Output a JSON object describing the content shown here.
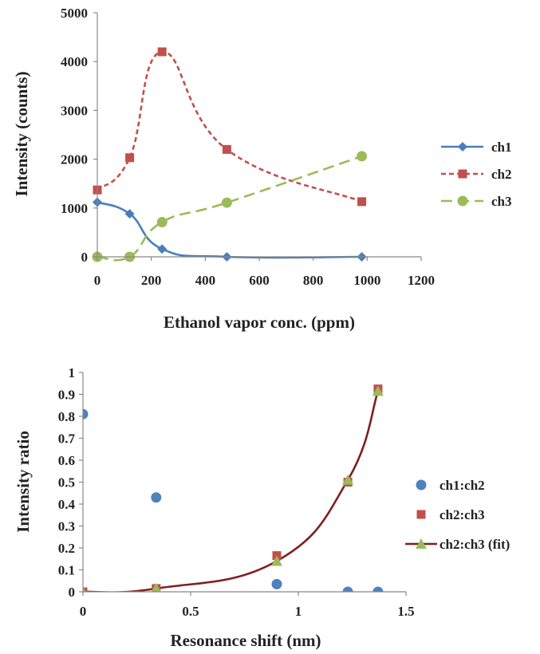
{
  "chart_data": [
    {
      "type": "line",
      "xlabel": "Ethanol vapor conc. (ppm)",
      "ylabel": "Intensity (counts)",
      "xlim": [
        0,
        1200
      ],
      "ylim": [
        0,
        5000
      ],
      "xticks": [
        "0",
        "200",
        "400",
        "600",
        "800",
        "1000",
        "1200"
      ],
      "yticks": [
        "0",
        "1000",
        "2000",
        "3000",
        "4000",
        "5000"
      ],
      "grid": false,
      "legend_position": "right",
      "series": [
        {
          "name": "ch1",
          "color": "#4a7ebb",
          "marker": "diamond",
          "dash": "solid",
          "x": [
            0,
            120,
            240,
            480,
            980
          ],
          "y": [
            1120,
            880,
            160,
            0,
            0
          ]
        },
        {
          "name": "ch2",
          "color": "#c0504d",
          "marker": "square",
          "dash": "short-dash",
          "x": [
            0,
            120,
            240,
            480,
            980
          ],
          "y": [
            1370,
            2030,
            4200,
            2200,
            1130
          ]
        },
        {
          "name": "ch3",
          "color": "#9bbb59",
          "marker": "circle",
          "dash": "long-dash",
          "x": [
            0,
            120,
            240,
            480,
            980
          ],
          "y": [
            0,
            0,
            710,
            1110,
            2060
          ]
        }
      ]
    },
    {
      "type": "scatter",
      "xlabel": "Resonance shift (nm)",
      "ylabel": "Intensity ratio",
      "xlim": [
        0,
        1.5
      ],
      "ylim": [
        0,
        1
      ],
      "xticks": [
        "0",
        "0.5",
        "1",
        "1.5"
      ],
      "yticks": [
        "0",
        "0.1",
        "0.2",
        "0.3",
        "0.4",
        "0.5",
        "0.6",
        "0.7",
        "0.8",
        "0.9",
        "1"
      ],
      "grid": false,
      "legend_position": "right",
      "series": [
        {
          "name": "ch1:ch2",
          "color": "#4f81bd",
          "marker": "circle",
          "x": [
            0,
            0.34,
            0.9,
            1.23,
            1.37
          ],
          "y": [
            0.81,
            0.43,
            0.035,
            0,
            0
          ]
        },
        {
          "name": "ch2:ch3",
          "color": "#c0504d",
          "marker": "square",
          "x": [
            0,
            0.34,
            0.9,
            1.23,
            1.37
          ],
          "y": [
            0,
            0.015,
            0.165,
            0.5,
            0.925
          ]
        },
        {
          "name": "ch2:ch3 (fit)",
          "color": "#7f1f1f",
          "marker_color": "#9bbb59",
          "marker": "triangle",
          "x": [
            0,
            0.34,
            0.9,
            1.23,
            1.37
          ],
          "y": [
            0,
            0.015,
            0.14,
            0.51,
            0.915
          ]
        }
      ]
    }
  ]
}
